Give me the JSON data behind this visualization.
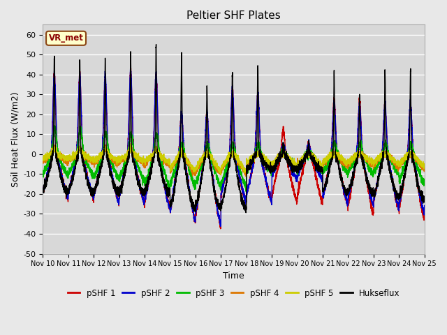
{
  "title": "Peltier SHF Plates",
  "xlabel": "Time",
  "ylabel": "Soil Heat Flux (W/m2)",
  "ylim": [
    -50,
    65
  ],
  "xlim": [
    0,
    15
  ],
  "background_color": "#e8e8e8",
  "plot_bg_color": "#d8d8d8",
  "series_colors": {
    "pSHF 1": "#cc0000",
    "pSHF 2": "#0000cc",
    "pSHF 3": "#00bb00",
    "pSHF 4": "#dd7700",
    "pSHF 5": "#cccc00",
    "Hukseflux": "#000000"
  },
  "legend_label": "VR_met",
  "xtick_labels": [
    "Nov 10",
    "Nov 11",
    "Nov 12",
    "Nov 13",
    "Nov 14",
    "Nov 15",
    "Nov 16",
    "Nov 17",
    "Nov 18",
    "Nov 19",
    "Nov 20",
    "Nov 21",
    "Nov 22",
    "Nov 23",
    "Nov 24",
    "Nov 25"
  ],
  "xtick_positions": [
    0,
    1,
    2,
    3,
    4,
    5,
    6,
    7,
    8,
    9,
    10,
    11,
    12,
    13,
    14,
    15
  ],
  "ytick_labels": [
    "-50",
    "-40",
    "-30",
    "-20",
    "-10",
    "0",
    "10",
    "20",
    "30",
    "40",
    "50",
    "60"
  ],
  "ytick_positions": [
    -50,
    -40,
    -30,
    -20,
    -10,
    0,
    10,
    20,
    30,
    40,
    50,
    60
  ]
}
